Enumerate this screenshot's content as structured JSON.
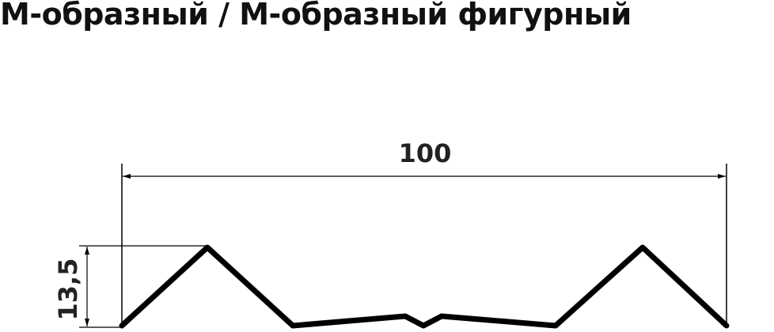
{
  "title": "М-образный / М-образный фигурный",
  "dimensions": {
    "width": "100",
    "height": "13,5"
  },
  "colors": {
    "profile": "#000000",
    "dimension_lines": "#000000",
    "text": "#222222"
  }
}
